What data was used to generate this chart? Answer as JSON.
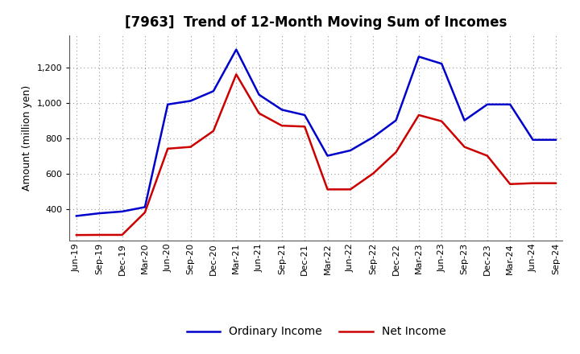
{
  "title": "[7963]  Trend of 12-Month Moving Sum of Incomes",
  "ylabel": "Amount (million yen)",
  "ylim": [
    220,
    1380
  ],
  "yticks": [
    400,
    600,
    800,
    1000,
    1200
  ],
  "background_color": "#ffffff",
  "plot_bg_color": "#ffffff",
  "grid_color": "#999999",
  "labels": [
    "Jun-19",
    "Sep-19",
    "Dec-19",
    "Mar-20",
    "Jun-20",
    "Sep-20",
    "Dec-20",
    "Mar-21",
    "Jun-21",
    "Sep-21",
    "Dec-21",
    "Mar-22",
    "Jun-22",
    "Sep-22",
    "Dec-22",
    "Mar-23",
    "Jun-23",
    "Sep-23",
    "Dec-23",
    "Mar-24",
    "Jun-24",
    "Sep-24"
  ],
  "ordinary_income": [
    360,
    375,
    385,
    410,
    990,
    1010,
    1065,
    1300,
    1045,
    960,
    930,
    700,
    730,
    805,
    900,
    1260,
    1220,
    900,
    990,
    990,
    790,
    790
  ],
  "net_income": [
    252,
    253,
    253,
    380,
    740,
    750,
    840,
    1160,
    940,
    870,
    865,
    510,
    510,
    600,
    720,
    930,
    895,
    750,
    700,
    540,
    545,
    545
  ],
  "ordinary_color": "#0000cc",
  "net_color": "#cc0000",
  "line_width": 1.8,
  "title_fontsize": 12,
  "axis_fontsize": 9,
  "tick_fontsize": 8,
  "legend_fontsize": 10
}
